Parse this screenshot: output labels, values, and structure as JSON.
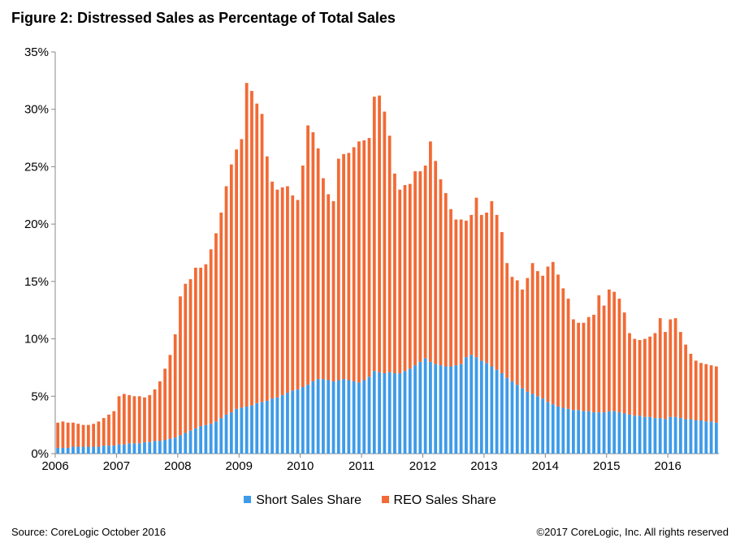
{
  "chart_data": {
    "type": "bar",
    "stacked": true,
    "title": "Figure 2: Distressed Sales as Percentage of Total Sales",
    "xlabel": "",
    "ylabel": "",
    "x_tick_labels": [
      "2006",
      "2007",
      "2008",
      "2009",
      "2010",
      "2011",
      "2012",
      "2013",
      "2014",
      "2015",
      "2016"
    ],
    "y_tick_labels": [
      "0%",
      "5%",
      "10%",
      "15%",
      "20%",
      "25%",
      "30%",
      "35%"
    ],
    "ylim": [
      0,
      35
    ],
    "grid": false,
    "legend_position": "bottom",
    "period_start": "2006-01",
    "period_end": "2016-10",
    "frequency": "monthly",
    "series": [
      {
        "name": "Short Sales Share",
        "color": "#3d9be9",
        "values": [
          0.5,
          0.5,
          0.5,
          0.6,
          0.6,
          0.6,
          0.6,
          0.6,
          0.6,
          0.7,
          0.7,
          0.7,
          0.8,
          0.8,
          0.9,
          0.9,
          0.9,
          1.0,
          1.0,
          1.1,
          1.1,
          1.2,
          1.3,
          1.4,
          1.6,
          1.8,
          2.0,
          2.2,
          2.4,
          2.5,
          2.6,
          2.8,
          3.1,
          3.4,
          3.6,
          3.9,
          4.0,
          4.1,
          4.2,
          4.4,
          4.5,
          4.6,
          4.8,
          4.9,
          5.1,
          5.3,
          5.5,
          5.6,
          5.8,
          6.0,
          6.3,
          6.5,
          6.5,
          6.4,
          6.3,
          6.4,
          6.5,
          6.4,
          6.3,
          6.2,
          6.4,
          6.7,
          7.2,
          7.1,
          7.0,
          7.1,
          7.0,
          7.0,
          7.2,
          7.4,
          7.7,
          8.0,
          8.3,
          8.0,
          7.8,
          7.7,
          7.6,
          7.6,
          7.7,
          7.8,
          8.4,
          8.6,
          8.4,
          8.1,
          7.9,
          7.6,
          7.3,
          7.0,
          6.6,
          6.3,
          6.0,
          5.7,
          5.4,
          5.2,
          5.0,
          4.8,
          4.5,
          4.3,
          4.1,
          4.0,
          3.9,
          3.8,
          3.8,
          3.7,
          3.7,
          3.6,
          3.6,
          3.6,
          3.7,
          3.7,
          3.6,
          3.5,
          3.4,
          3.3,
          3.3,
          3.2,
          3.2,
          3.1,
          3.1,
          3.0,
          3.2,
          3.2,
          3.1,
          3.0,
          3.0,
          2.9,
          2.9,
          2.8,
          2.8,
          2.7
        ]
      },
      {
        "name": "REO Sales Share",
        "color": "#f26a35",
        "values": [
          2.2,
          2.3,
          2.2,
          2.1,
          2.0,
          1.9,
          1.9,
          2.0,
          2.2,
          2.4,
          2.7,
          3.0,
          4.2,
          4.4,
          4.2,
          4.1,
          4.1,
          3.9,
          4.1,
          4.5,
          5.2,
          6.2,
          7.3,
          9.0,
          12.1,
          13.0,
          13.2,
          14.0,
          13.8,
          14.0,
          15.2,
          16.4,
          17.9,
          19.9,
          21.6,
          22.6,
          23.4,
          28.2,
          27.4,
          26.1,
          25.1,
          21.3,
          18.9,
          18.1,
          18.1,
          18.0,
          17.0,
          16.5,
          19.3,
          22.6,
          21.7,
          20.1,
          17.5,
          16.2,
          15.7,
          19.3,
          19.6,
          19.8,
          20.4,
          21.0,
          20.9,
          20.8,
          23.9,
          24.1,
          22.8,
          20.6,
          17.4,
          16.0,
          16.2,
          16.1,
          16.9,
          16.6,
          16.8,
          19.2,
          17.7,
          16.2,
          15.1,
          13.7,
          12.7,
          12.6,
          11.9,
          12.2,
          13.9,
          12.7,
          13.1,
          14.4,
          13.5,
          12.3,
          10.0,
          9.1,
          9.1,
          8.6,
          9.9,
          11.4,
          10.9,
          10.7,
          11.8,
          12.4,
          11.5,
          10.4,
          9.6,
          7.9,
          7.6,
          7.7,
          8.2,
          8.5,
          10.2,
          9.3,
          10.6,
          10.4,
          9.9,
          8.8,
          7.1,
          6.7,
          6.6,
          6.8,
          7.0,
          7.4,
          8.7,
          7.6,
          8.5,
          8.6,
          7.5,
          6.5,
          5.7,
          5.2,
          5.0,
          5.0,
          4.9,
          4.9
        ]
      }
    ]
  },
  "legend": {
    "items": [
      {
        "label": "Short Sales Share",
        "color": "#3d9be9"
      },
      {
        "label": "REO Sales Share",
        "color": "#f26a35"
      }
    ]
  },
  "footer": {
    "source": "Source: CoreLogic October 2016",
    "copyright": "©2017 CoreLogic, Inc. All rights reserved"
  }
}
